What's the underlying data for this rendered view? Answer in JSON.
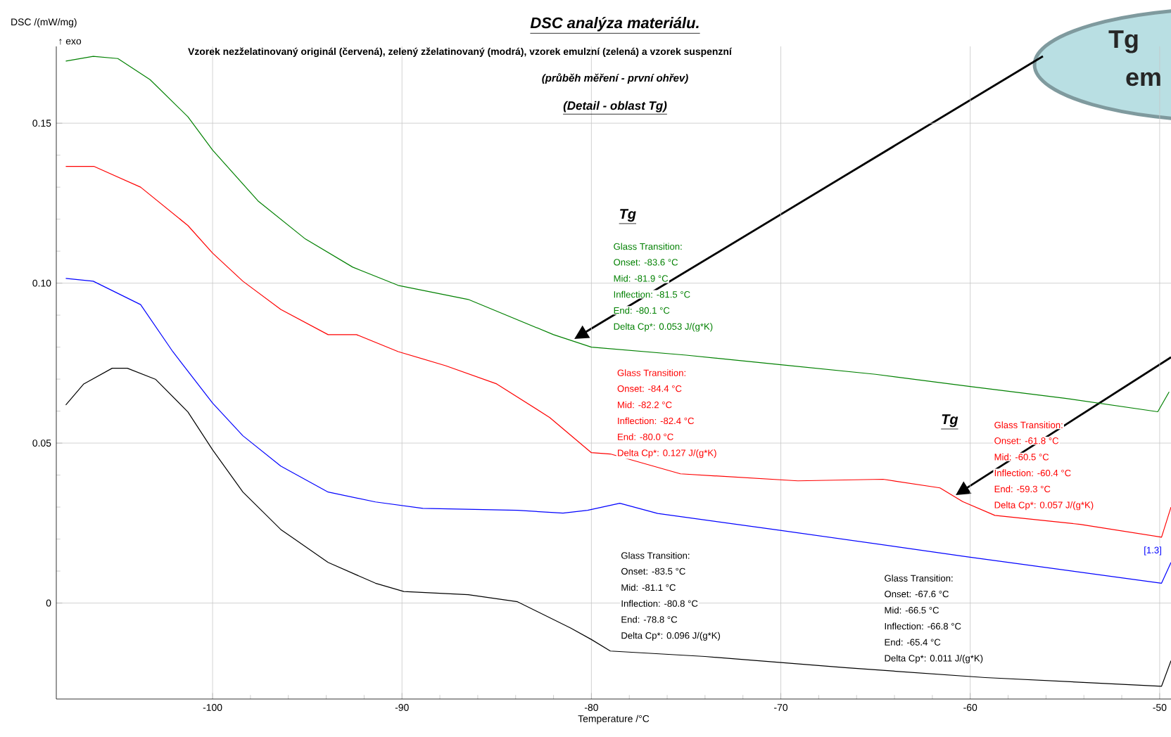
{
  "chart_data": {
    "type": "line",
    "title": "DSC analýza materiálu.",
    "subtitle": "Vzorek nezželatinovaný originál (červená), zelený zželatinovaný (modrá), vzorek emulzní (zelená) a vzorek suspenzní",
    "xlabel": "Temperature /°C",
    "ylabel": "DSC /(mW/mg)",
    "xlim": [
      -108.25,
      -49.4
    ],
    "ylim": [
      -0.03,
      0.174
    ],
    "xticks": [
      -100,
      -90,
      -80,
      -70,
      -60,
      -50
    ],
    "yticks": [
      0,
      {
        "value": 0.05,
        "label": "0.05"
      },
      {
        "value": 0.1,
        "label": "0.10"
      },
      {
        "value": 0.15,
        "label": "0.15"
      }
    ],
    "grid": true,
    "series": [
      {
        "color": "#ff0000",
        "x": [
          -107.75,
          -106.27,
          -103.8,
          -101.3,
          -100,
          -98.4,
          -96.4,
          -93.9,
          -92.4,
          -90.2,
          -87.7,
          -85,
          -82.2,
          -80,
          -79,
          -75.3,
          -69.1,
          -64.6,
          -61.6,
          -60.4,
          -58.7,
          -54.2,
          -49.9,
          -49.4
        ],
        "values": [
          0.1365,
          0.1365,
          0.13,
          0.118,
          0.1094,
          0.1006,
          0.0918,
          0.0839,
          0.0839,
          0.0786,
          0.0742,
          0.0685,
          0.058,
          0.047,
          0.0466,
          0.0404,
          0.0382,
          0.0387,
          0.036,
          0.0317,
          0.0274,
          0.0246,
          0.0206,
          0.03
        ]
      },
      {
        "color": "#0000ff",
        "x": [
          -107.75,
          -106.3,
          -103.8,
          -102.1,
          -100,
          -98.4,
          -96.4,
          -93.9,
          -91.4,
          -88.9,
          -83.9,
          -81.5,
          -80.2,
          -78.5,
          -76.5,
          -70.1,
          -60.2,
          -49.9,
          -49.4
        ],
        "values": [
          0.1015,
          0.1006,
          0.0933,
          0.0786,
          0.0625,
          0.0523,
          0.0428,
          0.0347,
          0.0316,
          0.0296,
          0.029,
          0.0281,
          0.029,
          0.0312,
          0.028,
          0.0228,
          0.0145,
          0.0062,
          0.0127
        ]
      },
      {
        "color": "#008000",
        "x": [
          -107.75,
          -106.3,
          -105,
          -103.3,
          -101.3,
          -100,
          -97.6,
          -95.1,
          -92.6,
          -90.2,
          -86.5,
          -82,
          -80,
          -75,
          -70,
          -65,
          -60,
          -55,
          -50.1,
          -49.5
        ],
        "values": [
          0.1694,
          0.1709,
          0.1702,
          0.1636,
          0.152,
          0.1416,
          0.1257,
          0.1138,
          0.105,
          0.0993,
          0.0949,
          0.0839,
          0.08,
          0.0775,
          0.0745,
          0.0715,
          0.0677,
          0.064,
          0.0598,
          0.066
        ]
      },
      {
        "color": "#000000",
        "x": [
          -107.75,
          -106.8,
          -105.3,
          -104.5,
          -103,
          -101.3,
          -100,
          -98.4,
          -96.4,
          -93.9,
          -91.4,
          -89.9,
          -86.5,
          -83.9,
          -81.1,
          -80,
          -79,
          -74,
          -66.6,
          -59.2,
          -49.9,
          -49.4
        ],
        "values": [
          0.0619,
          0.0685,
          0.0734,
          0.0734,
          0.0699,
          0.0597,
          0.0479,
          0.0347,
          0.023,
          0.0127,
          0.0062,
          0.0036,
          0.0026,
          0.0004,
          -0.0078,
          -0.0114,
          -0.015,
          -0.0167,
          -0.0202,
          -0.0233,
          -0.026,
          -0.018
        ]
      }
    ],
    "annotations": [
      "↑ exo",
      "(průběh měření - první ohřev)",
      "(Detail - oblast Tg)",
      "Tg",
      "Tg",
      "Glass Transition:",
      "Onset: -83.6 °C",
      "Mid: -81.9 °C",
      "Inflection: -81.5 °C",
      "End: -80.1 °C",
      "Delta Cp*: 0.053 J/(g*K)",
      "Glass Transition:",
      "Onset: -84.4 °C",
      "Mid: -82.2 °C",
      "Inflection: -82.4 °C",
      "End: -80.0 °C",
      "Delta Cp*: 0.127 J/(g*K)",
      "Glass Transition:",
      "Onset: -61.8 °C",
      "Mid: -60.5 °C",
      "Inflection: -60.4 °C",
      "End: -59.3 °C",
      "Delta Cp*: 0.057 J/(g*K)",
      "Glass Transition:",
      "Onset: -83.5 °C",
      "Mid: -81.1 °C",
      "Inflection: -80.8 °C",
      "End: -78.8 °C",
      "Delta Cp*: 0.096 J/(g*K)",
      "Glass Transition:",
      "Onset: -67.6 °C",
      "Mid: -66.5 °C",
      "Inflection: -66.8 °C",
      "End: -65.4 °C",
      "Delta Cp*: 0.011 J/(g*K)",
      "[1.3]",
      "Tg",
      "em"
    ]
  }
}
